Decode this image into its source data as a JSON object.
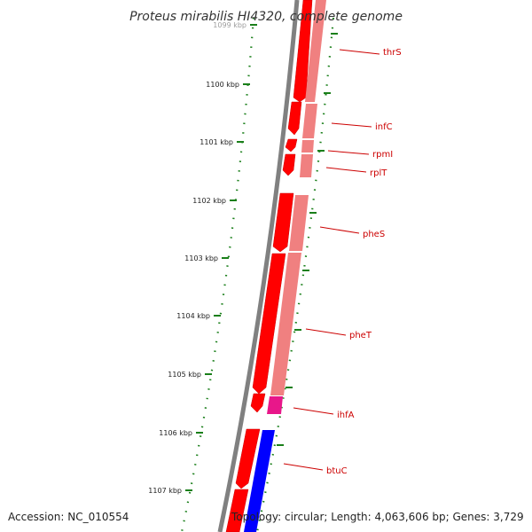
{
  "title": "Proteus mirabilis HI4320, complete genome",
  "footer": {
    "accession": "Accession: NC_010554",
    "topology": "Topology: circular; Length: 4,063,606 bp; Genes: 3,729"
  },
  "colors": {
    "cds_forward": "#ff0000",
    "cds_secondary": "#f08080",
    "trna_or_other": "#e8178a",
    "cds_blue": "#0000ff",
    "tick": "#1a7f1a",
    "label": "#cc0000",
    "backbone": "#808080"
  },
  "kbp_ticks": [
    {
      "label": "1099 kbp"
    },
    {
      "label": "1100 kbp"
    },
    {
      "label": "1101 kbp"
    },
    {
      "label": "1102 kbp"
    },
    {
      "label": "1103 kbp"
    },
    {
      "label": "1104 kbp"
    },
    {
      "label": "1105 kbp"
    },
    {
      "label": "1106 kbp"
    },
    {
      "label": "1107 kbp"
    }
  ],
  "genes": [
    {
      "name": "thrS"
    },
    {
      "name": "infC"
    },
    {
      "name": "rpmI"
    },
    {
      "name": "rplT"
    },
    {
      "name": "pheS"
    },
    {
      "name": "pheT"
    },
    {
      "name": "ihfA"
    },
    {
      "name": "btuC"
    }
  ]
}
